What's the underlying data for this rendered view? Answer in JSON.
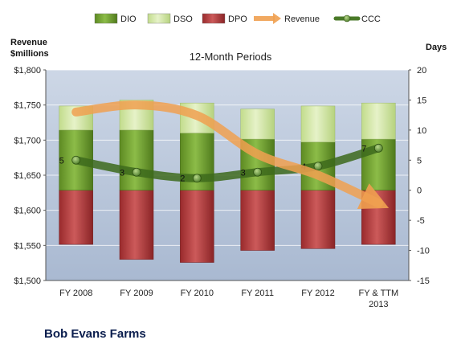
{
  "chart_data": {
    "type": "bar",
    "title": "12-Month Periods",
    "company": "Bob Evans Farms",
    "ylabel_left": [
      "Revenue",
      "$millions"
    ],
    "ylabel_right": "Days",
    "categories": [
      [
        "FY 2008"
      ],
      [
        "FY 2009"
      ],
      [
        "FY 2010"
      ],
      [
        "FY 2011"
      ],
      [
        "FY 2012"
      ],
      [
        "FY & TTM",
        "2013"
      ]
    ],
    "y_left": {
      "min": 1500,
      "max": 1800,
      "ticks": [
        1500,
        1550,
        1600,
        1650,
        1700,
        1750,
        1800
      ],
      "tick_labels": [
        "$1,500",
        "$1,550",
        "$1,600",
        "$1,650",
        "$1,700",
        "$1,750",
        "$1,800"
      ]
    },
    "y_right": {
      "min": -15,
      "max": 20,
      "ticks": [
        -15,
        -10,
        -5,
        0,
        5,
        10,
        15,
        20
      ],
      "tick_labels": [
        "-15",
        "-10",
        "-5",
        "0",
        "5",
        "10",
        "15",
        "20"
      ]
    },
    "grid": true,
    "legend_position": "top",
    "legend": [
      {
        "name": "DIO",
        "kind": "box",
        "color": "#6e9a2e"
      },
      {
        "name": "DSO",
        "kind": "box",
        "color": "#d3e6a8"
      },
      {
        "name": "DPO",
        "kind": "box",
        "color": "#b3383a"
      },
      {
        "name": "Revenue",
        "kind": "arrow",
        "color": "#f0a050"
      },
      {
        "name": "CCC",
        "kind": "line",
        "color": "#4a7a28"
      }
    ],
    "series": [
      {
        "name": "DIO",
        "axis": "right",
        "color": "#6e9a2e",
        "values": [
          10,
          10,
          9.5,
          8.5,
          8,
          8.5
        ]
      },
      {
        "name": "DSO",
        "axis": "right",
        "color": "#d3e6a8",
        "values": [
          4,
          5,
          5,
          5,
          6,
          6
        ]
      },
      {
        "name": "DPO",
        "axis": "right",
        "color": "#b3383a",
        "values": [
          -9,
          -11.5,
          -12,
          -10,
          -9.7,
          -9
        ]
      },
      {
        "name": "CCC",
        "axis": "right",
        "color": "#4a7a28",
        "values": [
          5,
          3,
          2,
          3,
          4,
          7
        ],
        "labels": [
          "5",
          "3",
          "2",
          "3",
          "4",
          "7"
        ]
      },
      {
        "name": "Revenue",
        "axis": "left",
        "color": "#f0a050",
        "values": [
          1740,
          1750,
          1735,
          1680,
          1650,
          1610
        ]
      }
    ]
  }
}
